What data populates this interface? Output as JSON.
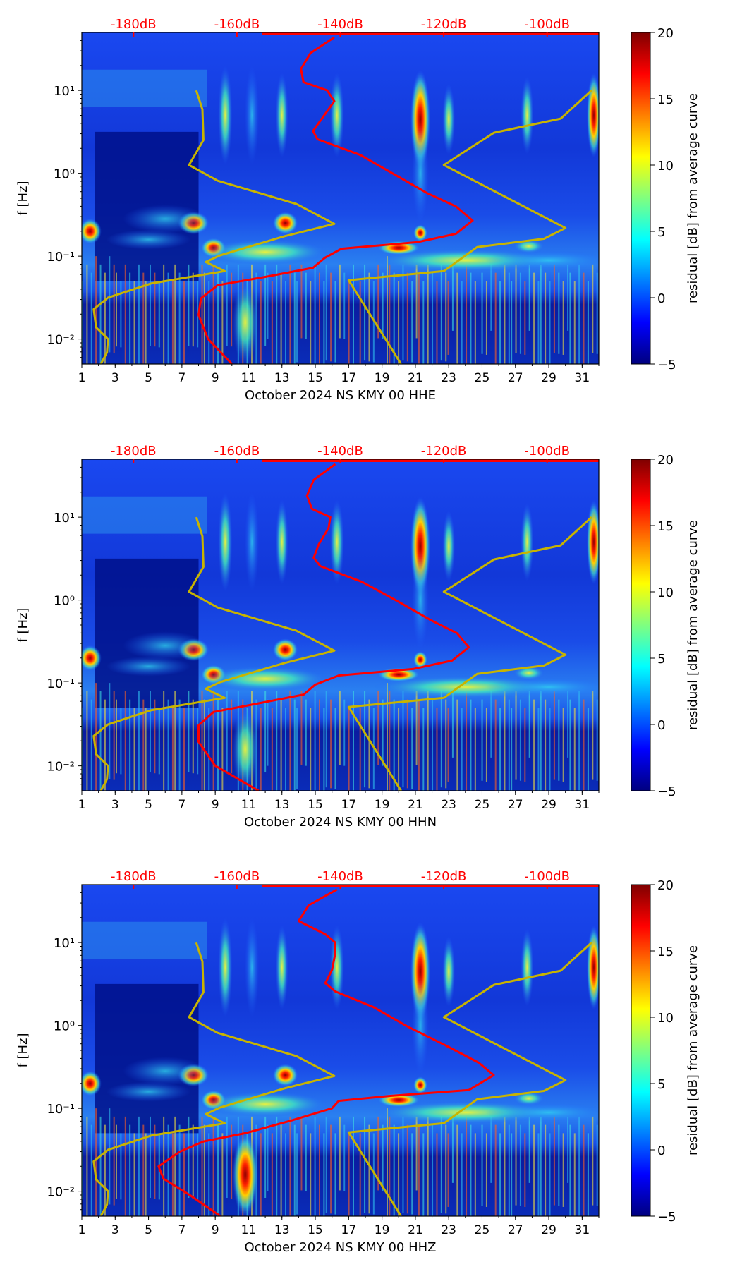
{
  "chart_data": {
    "type": "heatmap",
    "colorbar": {
      "label": "residual [dB] from average curve",
      "range": [
        -5,
        20
      ],
      "ticks": [
        "20",
        "15",
        "10",
        "5",
        "0",
        "−5"
      ],
      "tick_values": [
        20,
        15,
        10,
        5,
        0,
        -5
      ]
    },
    "x_axis": {
      "range": [
        1,
        32
      ],
      "ticks": [
        1,
        3,
        5,
        7,
        9,
        11,
        13,
        15,
        17,
        19,
        21,
        23,
        25,
        27,
        29,
        31
      ],
      "tick_labels": [
        "1",
        "3",
        "5",
        "7",
        "9",
        "11",
        "13",
        "15",
        "17",
        "19",
        "21",
        "23",
        "25",
        "27",
        "29",
        "31"
      ]
    },
    "y_axis": {
      "label": "f [Hz]",
      "scale": "log",
      "range": [
        0.005,
        50
      ],
      "ticks": [
        0.01,
        0.1,
        1,
        10
      ],
      "tick_labels": [
        "10⁻²",
        "10⁻¹",
        "10⁰",
        "10¹"
      ]
    },
    "top_axis": {
      "labels": [
        "-180dB",
        "-160dB",
        "-140dB",
        "-120dB",
        "-100dB"
      ],
      "values_db": [
        -180,
        -160,
        -140,
        -120,
        -100
      ],
      "positions_day": [
        4.1,
        10.3,
        16.5,
        22.7,
        28.9
      ]
    },
    "note": "curves given as [x position in day axis units, log10 frequency]",
    "low_noise_model": [
      [
        7.86,
        1.0
      ],
      [
        8.23,
        0.77
      ],
      [
        8.29,
        0.4
      ],
      [
        7.43,
        0.1
      ],
      [
        9.14,
        -0.09
      ],
      [
        13.86,
        -0.37
      ],
      [
        16.14,
        -0.61
      ],
      [
        13.14,
        -0.76
      ],
      [
        9.29,
        -0.99
      ],
      [
        8.43,
        -1.07
      ],
      [
        9.57,
        -1.18
      ],
      [
        5.14,
        -1.33
      ],
      [
        2.57,
        -1.5
      ],
      [
        1.71,
        -1.64
      ],
      [
        1.86,
        -1.86
      ],
      [
        2.57,
        -2.0
      ],
      [
        2.51,
        -2.16
      ],
      [
        2.14,
        -2.3
      ]
    ],
    "high_noise_model": [
      [
        31.57,
        1.0
      ],
      [
        29.71,
        0.66
      ],
      [
        25.71,
        0.49
      ],
      [
        22.71,
        0.1
      ],
      [
        30.0,
        -0.66
      ],
      [
        28.71,
        -0.79
      ],
      [
        24.71,
        -0.89
      ],
      [
        22.71,
        -1.18
      ],
      [
        17.0,
        -1.29
      ],
      [
        20.14,
        -2.3
      ]
    ],
    "panels": [
      {
        "title": "October 2024 NS KMY 00 HHE",
        "mean_psd": [
          [
            16.14,
            1.64
          ],
          [
            14.71,
            1.45
          ],
          [
            14.14,
            1.26
          ],
          [
            14.29,
            1.1
          ],
          [
            15.71,
            1.0
          ],
          [
            16.14,
            0.87
          ],
          [
            15.43,
            0.67
          ],
          [
            14.86,
            0.51
          ],
          [
            15.14,
            0.41
          ],
          [
            17.71,
            0.22
          ],
          [
            19.71,
            -0.01
          ],
          [
            21.71,
            -0.24
          ],
          [
            23.43,
            -0.4
          ],
          [
            24.43,
            -0.57
          ],
          [
            23.43,
            -0.73
          ],
          [
            21.14,
            -0.83
          ],
          [
            16.57,
            -0.91
          ],
          [
            15.57,
            -1.02
          ],
          [
            14.86,
            -1.14
          ],
          [
            12.0,
            -1.25
          ],
          [
            9.14,
            -1.35
          ],
          [
            8.14,
            -1.51
          ],
          [
            8.0,
            -1.71
          ],
          [
            8.57,
            -2.0
          ],
          [
            10.0,
            -2.3
          ]
        ]
      },
      {
        "title": "October 2024 NS KMY 00 HHN",
        "mean_psd": [
          [
            16.2,
            1.64
          ],
          [
            14.9,
            1.45
          ],
          [
            14.5,
            1.26
          ],
          [
            14.8,
            1.1
          ],
          [
            15.9,
            1.0
          ],
          [
            15.8,
            0.87
          ],
          [
            15.2,
            0.67
          ],
          [
            14.9,
            0.51
          ],
          [
            15.3,
            0.41
          ],
          [
            17.8,
            0.22
          ],
          [
            19.9,
            -0.01
          ],
          [
            21.9,
            -0.24
          ],
          [
            23.5,
            -0.4
          ],
          [
            24.2,
            -0.57
          ],
          [
            23.2,
            -0.73
          ],
          [
            20.9,
            -0.83
          ],
          [
            16.4,
            -0.91
          ],
          [
            15.0,
            -1.02
          ],
          [
            14.3,
            -1.14
          ],
          [
            11.5,
            -1.25
          ],
          [
            8.9,
            -1.35
          ],
          [
            8.0,
            -1.51
          ],
          [
            8.0,
            -1.71
          ],
          [
            9.0,
            -2.0
          ],
          [
            11.6,
            -2.3
          ]
        ]
      },
      {
        "title": "October 2024 NS KMY 00 HHZ",
        "mean_psd": [
          [
            16.3,
            1.64
          ],
          [
            14.6,
            1.45
          ],
          [
            14.0,
            1.26
          ],
          [
            15.6,
            1.1
          ],
          [
            16.2,
            1.0
          ],
          [
            16.2,
            0.87
          ],
          [
            16.0,
            0.67
          ],
          [
            15.6,
            0.51
          ],
          [
            16.2,
            0.41
          ],
          [
            18.5,
            0.22
          ],
          [
            20.5,
            -0.01
          ],
          [
            22.8,
            -0.24
          ],
          [
            24.8,
            -0.45
          ],
          [
            25.7,
            -0.6
          ],
          [
            24.2,
            -0.78
          ],
          [
            19.5,
            -0.85
          ],
          [
            16.4,
            -0.91
          ],
          [
            16.0,
            -1.0
          ],
          [
            13.5,
            -1.15
          ],
          [
            10.8,
            -1.3
          ],
          [
            8.3,
            -1.4
          ],
          [
            6.9,
            -1.52
          ],
          [
            5.6,
            -1.7
          ],
          [
            5.9,
            -1.85
          ],
          [
            7.5,
            -2.05
          ],
          [
            9.3,
            -2.3
          ]
        ]
      }
    ]
  },
  "colors": {
    "mean_psd": "#ff0000",
    "noise_models": "#c8b400",
    "top_axis_text": "#ff0000"
  }
}
